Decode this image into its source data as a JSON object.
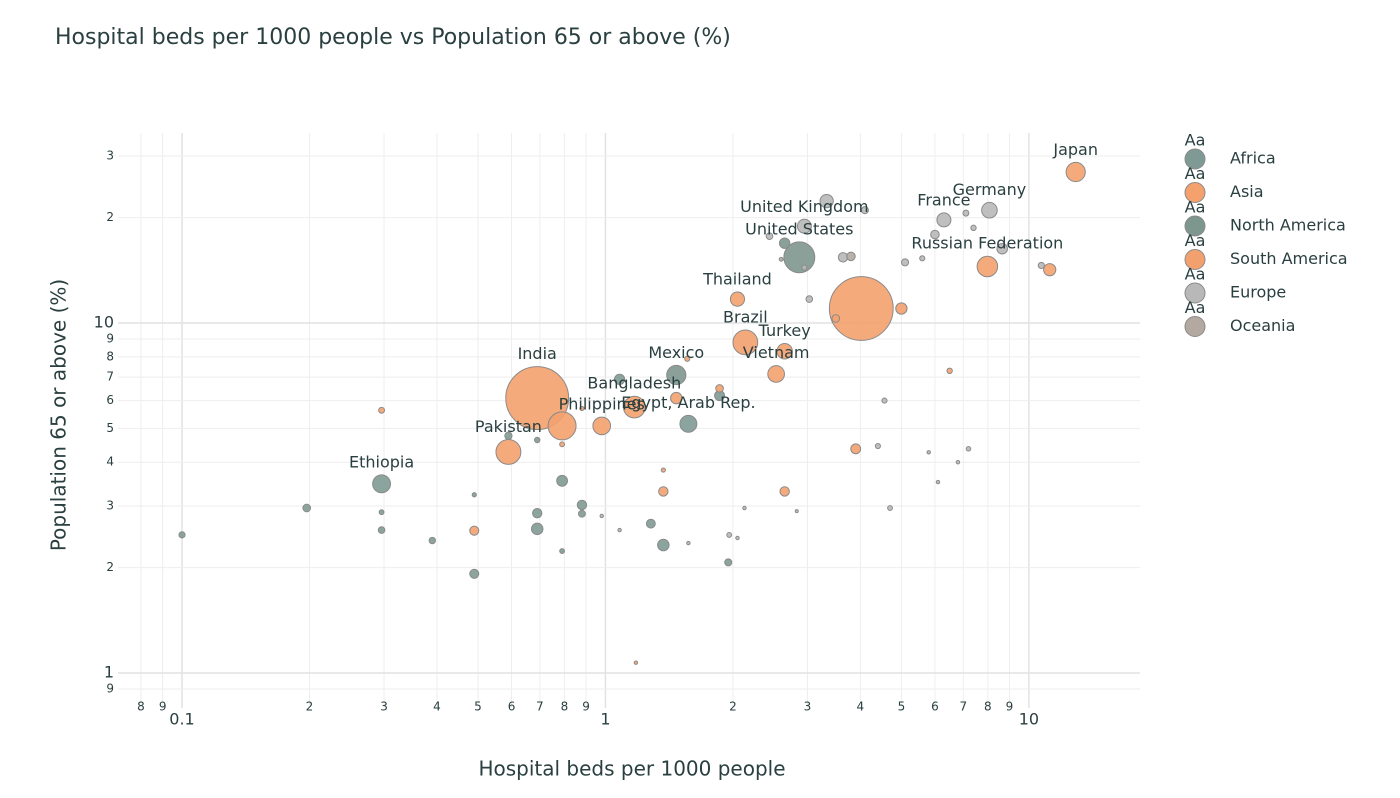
{
  "chart_data": {
    "type": "scatter",
    "title": "Hospital beds per 1000 people vs Population 65 or above (%)",
    "x_label": "Hospital beds per 1000 people",
    "y_label": "Population 65 or above (%)",
    "xscale": "log",
    "yscale": "log",
    "grid": true,
    "legend": "right",
    "legend_sample": "Aa",
    "xlim": [
      0.0706,
      18.3
    ],
    "ylim": [
      0.794,
      34.9
    ],
    "xticks": [
      {
        "value": 0.08,
        "label": "8"
      },
      {
        "value": 0.09,
        "label": "9"
      },
      0.1,
      {
        "value": 0.2,
        "label": "2"
      },
      {
        "value": 0.3,
        "label": "3"
      },
      {
        "value": 0.4,
        "label": "4"
      },
      {
        "value": 0.5,
        "label": "5"
      },
      {
        "value": 0.6,
        "label": "6"
      },
      {
        "value": 0.7,
        "label": "7"
      },
      {
        "value": 0.8,
        "label": "8"
      },
      {
        "value": 0.9,
        "label": "9"
      },
      1,
      2,
      3,
      4,
      5,
      6,
      7,
      8,
      9,
      10
    ],
    "yticks": [
      {
        "value": 0.9,
        "label": "9"
      },
      1,
      2,
      3,
      4,
      5,
      6,
      7,
      8,
      9,
      10,
      {
        "value": 20,
        "label": "2"
      },
      {
        "value": 30,
        "label": "3"
      }
    ],
    "series": [
      {
        "name": "Africa",
        "color": "#7f9a94",
        "x": [
          1.57,
          0.296,
          0.1,
          0.197,
          0.296,
          0.296,
          0.39,
          0.49,
          0.49,
          0.69,
          0.69,
          0.79,
          0.79,
          0.88,
          0.88,
          1.08,
          1.28,
          1.37,
          1.95,
          1.86,
          0.59,
          0.69
        ],
        "values": [
          5.15,
          3.47,
          2.48,
          2.96,
          2.56,
          2.88,
          2.39,
          1.92,
          3.23,
          2.58,
          2.86,
          3.54,
          2.23,
          3.02,
          2.85,
          6.9,
          2.67,
          2.32,
          2.07,
          6.2,
          4.76,
          4.63
        ],
        "sizes": [
          98,
          109,
          13,
          20,
          15,
          8,
          14,
          28,
          6,
          45,
          30,
          40,
          8,
          30,
          16,
          36,
          27,
          45,
          17,
          34,
          18,
          10
        ],
        "text": [
          "Egypt, Arab Rep.",
          "Ethiopia",
          null,
          null,
          null,
          null,
          null,
          null,
          null,
          null,
          null,
          null,
          null,
          null,
          null,
          null,
          null,
          null,
          null,
          null,
          null,
          null
        ]
      },
      {
        "name": "Asia",
        "color": "#f4a16e",
        "x": [
          12.9,
          7.98,
          2.05,
          4.02,
          2.65,
          2.53,
          0.69,
          1.17,
          0.98,
          0.59,
          0.79,
          0.296,
          0.49,
          1.37,
          1.37,
          2.65,
          3.9,
          6.5,
          11.2,
          3.5,
          1.56,
          1.86,
          1.47,
          1.18,
          0.79,
          0.88
        ],
        "values": [
          27.0,
          14.5,
          11.7,
          11.0,
          8.3,
          7.15,
          6.1,
          5.75,
          5.08,
          4.28,
          5.08,
          5.63,
          2.55,
          3.3,
          3.8,
          3.3,
          4.37,
          7.3,
          14.2,
          10.3,
          7.9,
          6.5,
          6.1,
          1.07,
          4.5,
          5.7
        ],
        "sizes": [
          126,
          144,
          69,
          1393,
          82,
          95,
          1353,
          161,
          107,
          212,
          267,
          12,
          28,
          30,
          6,
          30,
          33,
          10,
          51,
          20,
          9,
          20,
          45,
          4,
          8,
          6
        ],
        "text": [
          "Japan",
          "Russian Federation",
          "Thailand",
          null,
          "Turkey",
          "Vietnam",
          "India",
          "Bangladesh",
          "Philippines",
          "Pakistan",
          null,
          null,
          null,
          null,
          null,
          null,
          null,
          null,
          null,
          null,
          null,
          null,
          null,
          null,
          null,
          null
        ]
      },
      {
        "name": "North America",
        "color": "#7d968e",
        "x": [
          2.87,
          1.47,
          2.65
        ],
        "values": [
          15.4,
          7.1,
          16.9
        ],
        "sizes": [
          327,
          126,
          37
        ],
        "text": [
          "United States",
          "Mexico",
          null
        ]
      },
      {
        "name": "South America",
        "color": "#f3a06f",
        "x": [
          2.14,
          5.0
        ],
        "values": [
          8.8,
          11.0
        ],
        "sizes": [
          209,
          44
        ],
        "text": [
          "Brazil",
          null
        ]
      },
      {
        "name": "Europe",
        "color": "#b8b8b8",
        "x": [
          8.07,
          6.3,
          2.95,
          3.33,
          4.1,
          3.64,
          3.03,
          5.1,
          5.6,
          6.0,
          7.1,
          7.4,
          8.65,
          10.7,
          4.56,
          4.7,
          7.2,
          4.4,
          5.8,
          6.1,
          6.8,
          0.98,
          1.08,
          1.57,
          1.96,
          2.05,
          2.13,
          2.83,
          2.95,
          2.44
        ],
        "values": [
          21.0,
          19.7,
          18.9,
          22.3,
          21.0,
          15.4,
          11.7,
          14.9,
          15.3,
          17.9,
          20.6,
          18.7,
          16.3,
          14.6,
          6.0,
          2.96,
          4.37,
          4.45,
          4.27,
          3.51,
          4.0,
          2.81,
          2.56,
          2.35,
          2.48,
          2.43,
          2.96,
          2.9,
          14.4,
          17.7
        ],
        "sizes": [
          83,
          67,
          66,
          60,
          17,
          30,
          15,
          17,
          9,
          25,
          12,
          10,
          38,
          13,
          9,
          8,
          7,
          9,
          4,
          4,
          4,
          4,
          4,
          4,
          8,
          4,
          4,
          3,
          9,
          15
        ],
        "text": [
          "Germany",
          "France",
          "United Kingdom",
          null,
          null,
          null,
          null,
          null,
          null,
          null,
          null,
          null,
          null,
          null,
          null,
          null,
          null,
          null,
          null,
          null,
          null,
          null,
          null,
          null,
          null,
          null,
          null,
          null,
          null,
          null
        ]
      },
      {
        "name": "Oceania",
        "color": "#b3a9a0",
        "x": [
          3.8,
          2.6
        ],
        "values": [
          15.5,
          15.2
        ],
        "sizes": [
          25,
          5
        ],
        "text": [
          null,
          null
        ]
      }
    ]
  }
}
